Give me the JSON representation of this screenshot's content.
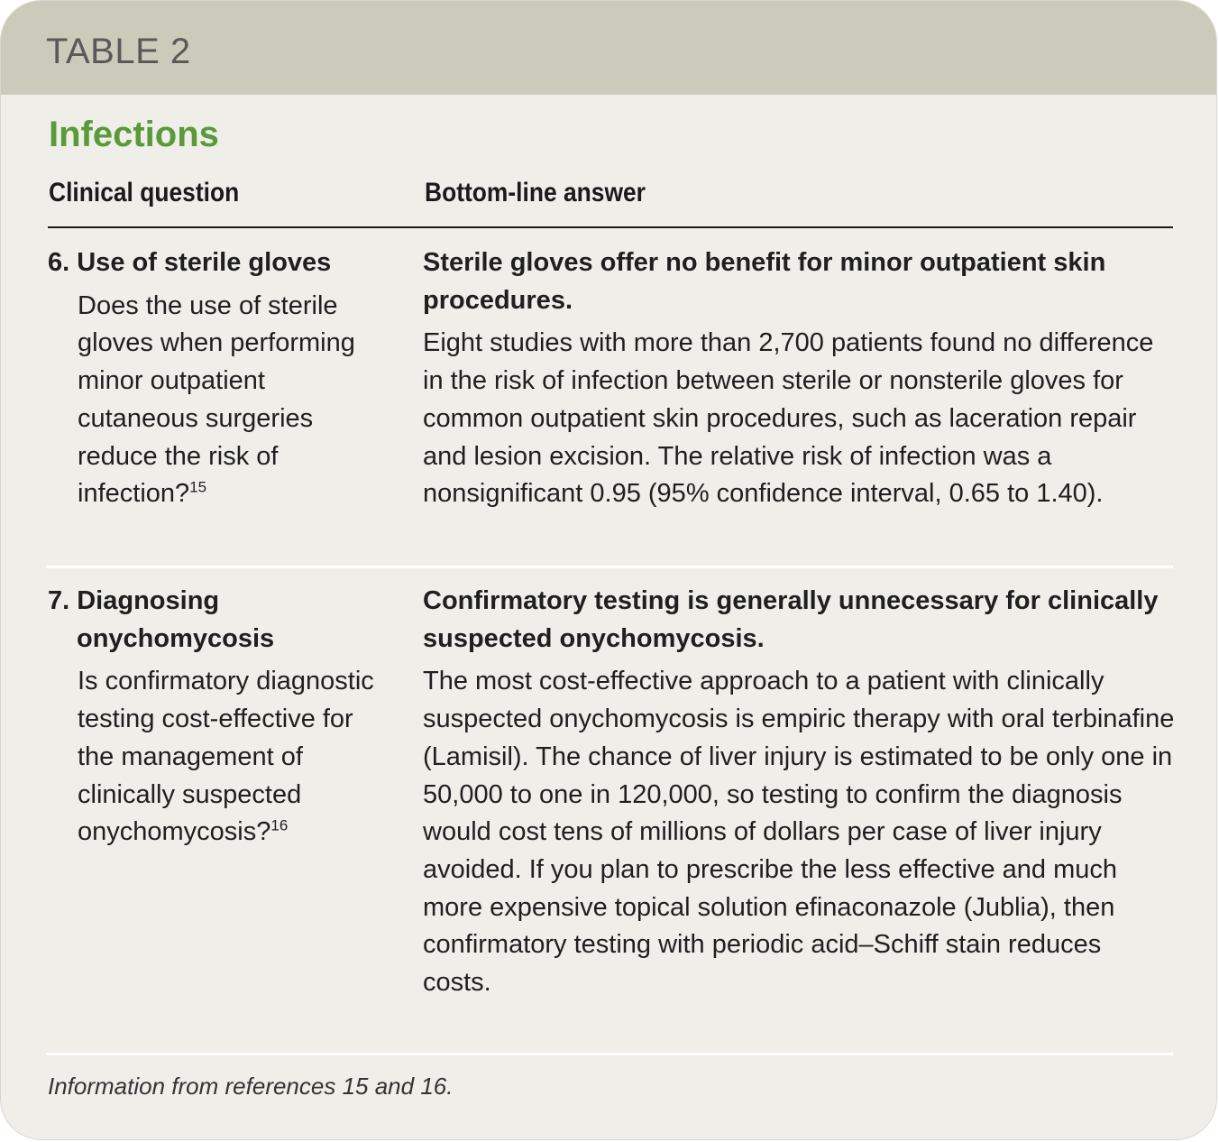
{
  "header": {
    "title": "TABLE 2"
  },
  "section_title": "Infections",
  "columns": {
    "question": "Clinical question",
    "answer": "Bottom-line answer"
  },
  "rows": [
    {
      "number_title": "6. Use of sterile gloves",
      "question": "Does the use of sterile gloves when performing minor outpatient cutaneous surgeries reduce the risk of infection?",
      "ref": "15",
      "answer_title": "Sterile gloves offer no benefit for minor outpatient skin procedures.",
      "answer_body": "Eight studies with more than 2,700 patients found no difference in the risk of infection between sterile or nonsterile gloves for common outpatient skin procedures, such as laceration repair and lesion excision. The relative risk of infection was a nonsignificant 0.95 (95% confidence interval, 0.65 to 1.40)."
    },
    {
      "number_title": "7. Diagnosing onychomycosis",
      "question": "Is confirmatory diagnostic testing cost-effective for the management of clinically suspected onychomycosis?",
      "ref": "16",
      "answer_title": "Confirmatory testing is generally unnecessary for clinically suspected onychomycosis.",
      "answer_body": "The most cost-effective approach to a patient with clinically suspected onychomycosis is empiric therapy with oral terbinafine (Lamisil). The chance of liver injury is estimated to be only one in 50,000 to one in 120,000, so testing to confirm the diagnosis would cost tens of millions of dollars per case of liver injury avoided. If you plan to prescribe the less effective and much more expensive topical solution efinaconazole (Jublia), then confirmatory testing with periodic acid–Schiff stain reduces costs."
    }
  ],
  "footnote": "Information from references 15 and 16.",
  "colors": {
    "header_bg": "#cbcbbb",
    "title": "#5e5758",
    "section": "#5a9a3a",
    "background": "#efeee9"
  }
}
